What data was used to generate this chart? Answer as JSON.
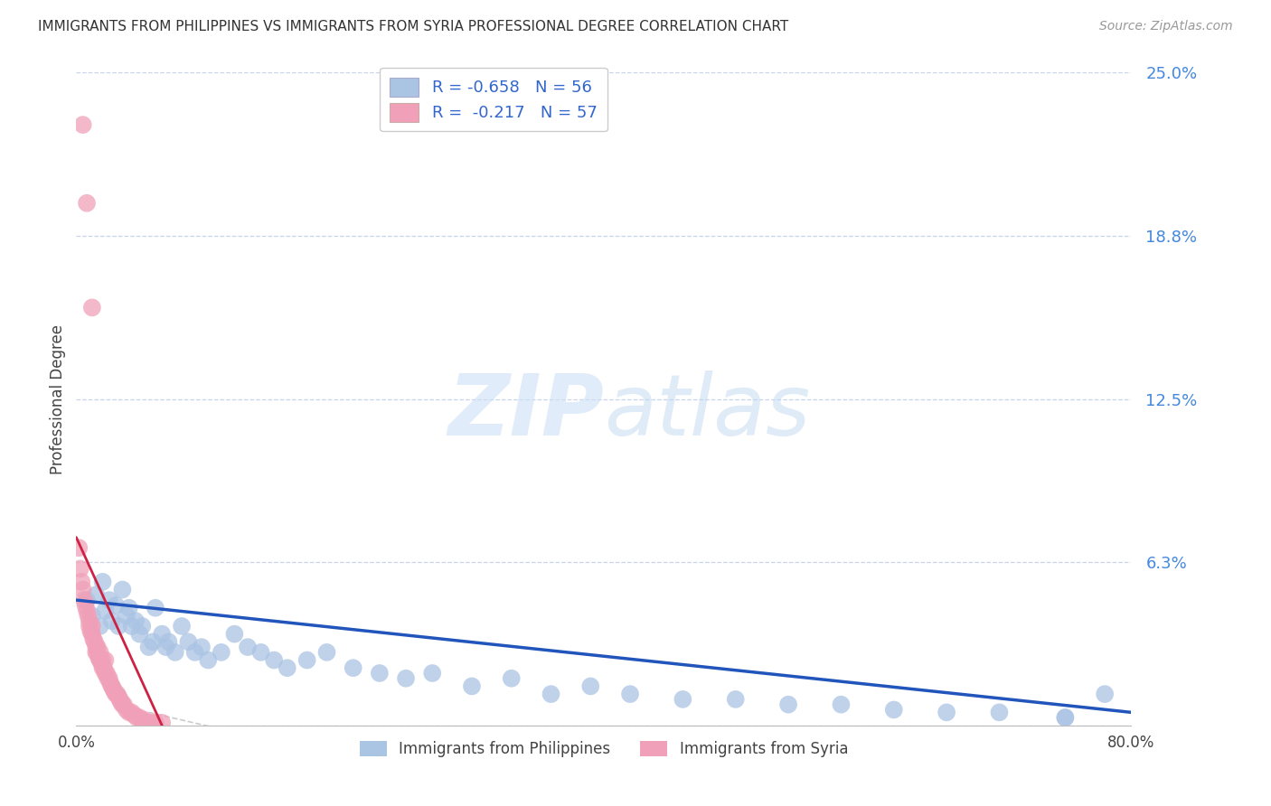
{
  "title": "IMMIGRANTS FROM PHILIPPINES VS IMMIGRANTS FROM SYRIA PROFESSIONAL DEGREE CORRELATION CHART",
  "source": "Source: ZipAtlas.com",
  "ylabel": "Professional Degree",
  "xlim": [
    0.0,
    0.8
  ],
  "ylim": [
    0.0,
    0.25
  ],
  "yticks": [
    0.0,
    0.0625,
    0.125,
    0.1875,
    0.25
  ],
  "ytick_labels": [
    "",
    "6.3%",
    "12.5%",
    "18.8%",
    "25.0%"
  ],
  "xticks": [
    0.0,
    0.8
  ],
  "xtick_labels": [
    "0.0%",
    "80.0%"
  ],
  "background_color": "#ffffff",
  "grid_color": "#c8d4e8",
  "philippines_color": "#aac4e4",
  "syria_color": "#f0a0b8",
  "philippines_line_color": "#2255bb",
  "syria_line_color": "#cc2244",
  "syria_dashed_color": "#cccccc",
  "watermark_color": "#ddeeff",
  "philippines_points_x": [
    0.008,
    0.012,
    0.015,
    0.018,
    0.02,
    0.022,
    0.025,
    0.027,
    0.03,
    0.032,
    0.035,
    0.038,
    0.04,
    0.042,
    0.045,
    0.048,
    0.05,
    0.055,
    0.058,
    0.06,
    0.065,
    0.068,
    0.07,
    0.075,
    0.08,
    0.085,
    0.09,
    0.095,
    0.1,
    0.11,
    0.12,
    0.13,
    0.14,
    0.15,
    0.16,
    0.175,
    0.19,
    0.21,
    0.23,
    0.25,
    0.27,
    0.3,
    0.33,
    0.36,
    0.39,
    0.42,
    0.46,
    0.5,
    0.54,
    0.58,
    0.62,
    0.66,
    0.7,
    0.75,
    0.78,
    0.75
  ],
  "philippines_points_y": [
    0.048,
    0.042,
    0.05,
    0.038,
    0.055,
    0.044,
    0.048,
    0.04,
    0.046,
    0.038,
    0.052,
    0.042,
    0.045,
    0.038,
    0.04,
    0.035,
    0.038,
    0.03,
    0.032,
    0.045,
    0.035,
    0.03,
    0.032,
    0.028,
    0.038,
    0.032,
    0.028,
    0.03,
    0.025,
    0.028,
    0.035,
    0.03,
    0.028,
    0.025,
    0.022,
    0.025,
    0.028,
    0.022,
    0.02,
    0.018,
    0.02,
    0.015,
    0.018,
    0.012,
    0.015,
    0.012,
    0.01,
    0.01,
    0.008,
    0.008,
    0.006,
    0.005,
    0.005,
    0.003,
    0.012,
    0.003
  ],
  "syria_points_x": [
    0.002,
    0.003,
    0.004,
    0.005,
    0.006,
    0.007,
    0.008,
    0.009,
    0.01,
    0.01,
    0.011,
    0.012,
    0.012,
    0.013,
    0.014,
    0.015,
    0.015,
    0.016,
    0.016,
    0.017,
    0.018,
    0.018,
    0.019,
    0.02,
    0.02,
    0.021,
    0.022,
    0.022,
    0.023,
    0.024,
    0.025,
    0.026,
    0.027,
    0.028,
    0.029,
    0.03,
    0.031,
    0.032,
    0.033,
    0.034,
    0.035,
    0.036,
    0.038,
    0.04,
    0.042,
    0.044,
    0.046,
    0.048,
    0.05,
    0.052,
    0.055,
    0.058,
    0.06,
    0.065,
    0.005,
    0.008,
    0.012
  ],
  "syria_points_y": [
    0.068,
    0.06,
    0.055,
    0.052,
    0.048,
    0.046,
    0.044,
    0.042,
    0.04,
    0.038,
    0.036,
    0.038,
    0.035,
    0.033,
    0.032,
    0.03,
    0.028,
    0.03,
    0.028,
    0.026,
    0.025,
    0.028,
    0.024,
    0.025,
    0.022,
    0.022,
    0.02,
    0.025,
    0.02,
    0.018,
    0.018,
    0.016,
    0.015,
    0.014,
    0.013,
    0.012,
    0.012,
    0.011,
    0.01,
    0.009,
    0.008,
    0.008,
    0.006,
    0.005,
    0.005,
    0.004,
    0.003,
    0.003,
    0.002,
    0.002,
    0.001,
    0.001,
    0.001,
    0.001,
    0.23,
    0.2,
    0.16
  ],
  "philippines_line_x": [
    0.0,
    0.8
  ],
  "philippines_line_y": [
    0.048,
    0.005
  ],
  "syria_line_x": [
    0.0,
    0.065
  ],
  "syria_line_y": [
    0.072,
    0.0
  ]
}
